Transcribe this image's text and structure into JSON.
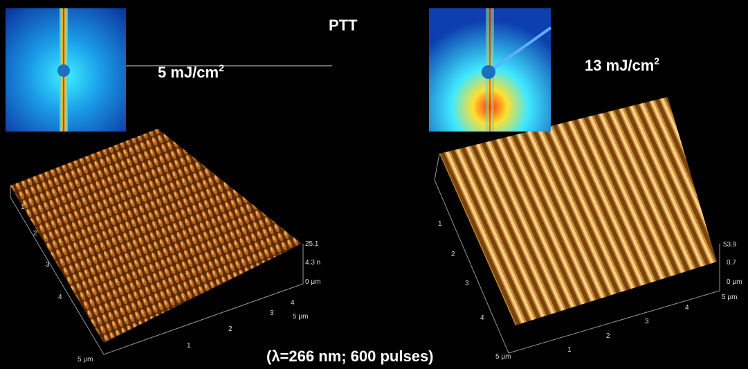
{
  "title": "PTT",
  "panels": [
    {
      "fluence": "5 mJ/cm",
      "fluence_sup": "2",
      "axis_labels": [
        "1",
        "2",
        "3",
        "4",
        "5 μm",
        "1",
        "2",
        "3",
        "4",
        "5 μm",
        "25.1",
        "4.3 n",
        "0 μm"
      ]
    },
    {
      "fluence": "13 mJ/cm",
      "fluence_sup": "2",
      "axis_labels": [
        "1",
        "2",
        "3",
        "4",
        "5 μm",
        "1",
        "2",
        "3",
        "4",
        "5 μm",
        "53.9",
        "0.7",
        "0 μm"
      ]
    }
  ],
  "caption": "(λ=266 nm; 600 pulses)"
}
